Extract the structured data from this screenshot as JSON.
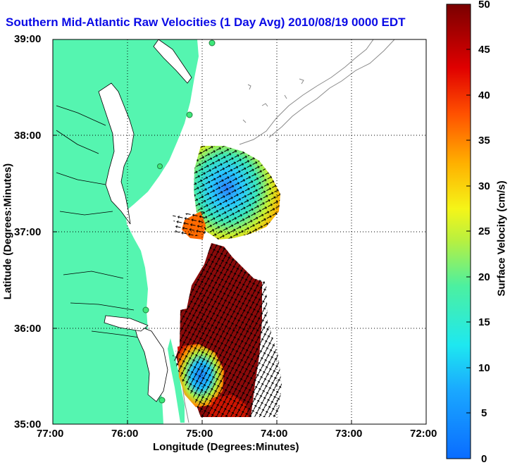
{
  "title": "Southern Mid-Atlantic Raw Velocities (1 Day Avg) 2010/08/19 0000 EDT",
  "x_axis": {
    "label": "Longitude (Degrees:Minutes)",
    "ticks": [
      "77:00",
      "76:00",
      "75:00",
      "74:00",
      "73:00",
      "72:00"
    ]
  },
  "y_axis": {
    "label": "Latitude (Degrees:Minutes)",
    "ticks": [
      "39:00",
      "38:00",
      "37:00",
      "36:00",
      "35:00"
    ]
  },
  "colorbar": {
    "label": "Surface Velocity (cm/s)",
    "ticks": [
      "50",
      "45",
      "40",
      "35",
      "30",
      "25",
      "20",
      "15",
      "10",
      "5",
      "0"
    ],
    "range": [
      0,
      50
    ]
  },
  "colors": {
    "land": "#55f5b0",
    "title": "#0a0ae6",
    "velocity_low": "#0a6cff",
    "velocity_high": "#7a0000"
  },
  "map": {
    "lon_range": [
      -77,
      -72
    ],
    "lat_range": [
      35,
      39
    ],
    "grid": "dotted"
  }
}
